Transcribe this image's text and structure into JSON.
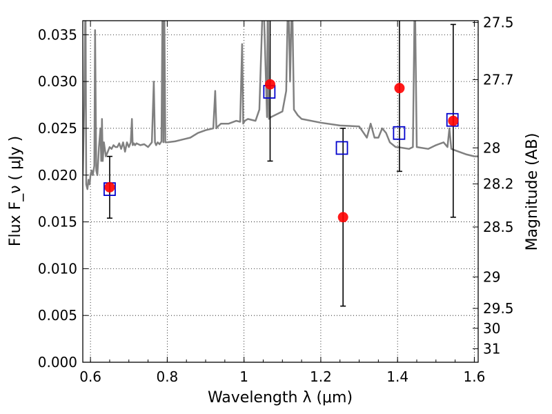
{
  "chart_data": {
    "type": "scatter",
    "xlabel": "Wavelength  λ (μm)",
    "ylabel": "Flux  F_ν  ( μJy )",
    "ylabel_right": "Magnitude (AB)",
    "xlim": [
      0.58,
      1.61
    ],
    "ylim": [
      0.0,
      0.0365
    ],
    "grid": true,
    "x_ticks": [
      0.6,
      0.8,
      1.0,
      1.2,
      1.4,
      1.6
    ],
    "x_tick_labels": [
      "0.6",
      "0.8",
      "1",
      "1.2",
      "1.4",
      "1.6"
    ],
    "y_ticks": [
      0.0,
      0.005,
      0.01,
      0.015,
      0.02,
      0.025,
      0.03,
      0.035
    ],
    "y_tick_labels": [
      "0.000",
      "0.005",
      "0.010",
      "0.015",
      "0.020",
      "0.025",
      "0.030",
      "0.035"
    ],
    "right_ticks": [
      {
        "label": "27.5",
        "mag": 27.5
      },
      {
        "label": "27.7",
        "mag": 27.7
      },
      {
        "label": "28",
        "mag": 28.0
      },
      {
        "label": "28.2",
        "mag": 28.2
      },
      {
        "label": "28.5",
        "mag": 28.5
      },
      {
        "label": "29",
        "mag": 29.0
      },
      {
        "label": "29.5",
        "mag": 29.5
      },
      {
        "label": "30",
        "mag": 30.0
      },
      {
        "label": "31",
        "mag": 31.0
      }
    ],
    "observed": {
      "color": "#ff0000",
      "points": [
        {
          "x": 0.65,
          "y": 0.0187,
          "ylo": 0.0154,
          "yhi": 0.022
        },
        {
          "x": 1.068,
          "y": 0.0297,
          "ylo": 0.0215,
          "yhi": 0.038
        },
        {
          "x": 1.258,
          "y": 0.0155,
          "ylo": 0.006,
          "yhi": 0.025
        },
        {
          "x": 1.405,
          "y": 0.0293,
          "ylo": 0.0204,
          "yhi": 0.038
        },
        {
          "x": 1.545,
          "y": 0.0258,
          "ylo": 0.0155,
          "yhi": 0.0361
        }
      ]
    },
    "model_photometry": {
      "color": "#0000cc",
      "points": [
        {
          "x": 0.65,
          "y": 0.0185
        },
        {
          "x": 1.066,
          "y": 0.0289
        },
        {
          "x": 1.255,
          "y": 0.0229
        },
        {
          "x": 1.404,
          "y": 0.0245
        },
        {
          "x": 1.543,
          "y": 0.0259
        }
      ]
    },
    "template_spectrum": {
      "color": "#808080",
      "x": [
        0.58,
        0.584,
        0.587,
        0.589,
        0.592,
        0.595,
        0.598,
        0.6,
        0.603,
        0.606,
        0.61,
        0.612,
        0.615,
        0.618,
        0.622,
        0.626,
        0.628,
        0.63,
        0.632,
        0.635,
        0.64,
        0.645,
        0.65,
        0.655,
        0.66,
        0.665,
        0.67,
        0.675,
        0.68,
        0.685,
        0.69,
        0.695,
        0.7,
        0.705,
        0.708,
        0.71,
        0.713,
        0.716,
        0.72,
        0.73,
        0.74,
        0.75,
        0.76,
        0.765,
        0.768,
        0.771,
        0.775,
        0.78,
        0.785,
        0.788,
        0.79,
        0.792,
        0.795,
        0.8,
        0.82,
        0.84,
        0.86,
        0.88,
        0.9,
        0.92,
        0.925,
        0.928,
        0.932,
        0.94,
        0.96,
        0.98,
        0.99,
        0.995,
        0.998,
        1.002,
        1.01,
        1.03,
        1.04,
        1.05,
        1.06,
        1.062,
        1.065,
        1.07,
        1.08,
        1.1,
        1.11,
        1.115,
        1.12,
        1.125,
        1.13,
        1.14,
        1.15,
        1.2,
        1.25,
        1.3,
        1.32,
        1.33,
        1.34,
        1.35,
        1.36,
        1.37,
        1.38,
        1.395,
        1.4,
        1.43,
        1.44,
        1.445,
        1.45,
        1.48,
        1.5,
        1.52,
        1.53,
        1.535,
        1.54,
        1.56,
        1.58,
        1.6,
        1.61
      ],
      "y": [
        0.02,
        0.028,
        0.04,
        0.019,
        0.0185,
        0.0195,
        0.019,
        0.02,
        0.0205,
        0.02,
        0.021,
        0.0355,
        0.0205,
        0.02,
        0.023,
        0.025,
        0.0215,
        0.026,
        0.0215,
        0.0235,
        0.022,
        0.0225,
        0.023,
        0.0228,
        0.0232,
        0.023,
        0.023,
        0.0234,
        0.0228,
        0.0235,
        0.0225,
        0.0235,
        0.023,
        0.0235,
        0.026,
        0.0232,
        0.0234,
        0.0232,
        0.0234,
        0.0232,
        0.0233,
        0.023,
        0.0235,
        0.03,
        0.0235,
        0.0232,
        0.0235,
        0.0233,
        0.0236,
        0.04,
        0.0235,
        0.04,
        0.0235,
        0.0235,
        0.0236,
        0.0238,
        0.024,
        0.0245,
        0.0248,
        0.025,
        0.029,
        0.025,
        0.0252,
        0.0255,
        0.0255,
        0.0258,
        0.0257,
        0.034,
        0.0255,
        0.0258,
        0.026,
        0.0258,
        0.027,
        0.04,
        0.0262,
        0.04,
        0.026,
        0.0262,
        0.0264,
        0.0268,
        0.029,
        0.04,
        0.03,
        0.04,
        0.027,
        0.0264,
        0.026,
        0.0256,
        0.0253,
        0.0252,
        0.024,
        0.0255,
        0.024,
        0.024,
        0.025,
        0.0245,
        0.0235,
        0.023,
        0.023,
        0.0228,
        0.023,
        0.04,
        0.023,
        0.0228,
        0.0232,
        0.0235,
        0.023,
        0.025,
        0.0228,
        0.0225,
        0.0222,
        0.022,
        0.022
      ]
    }
  }
}
